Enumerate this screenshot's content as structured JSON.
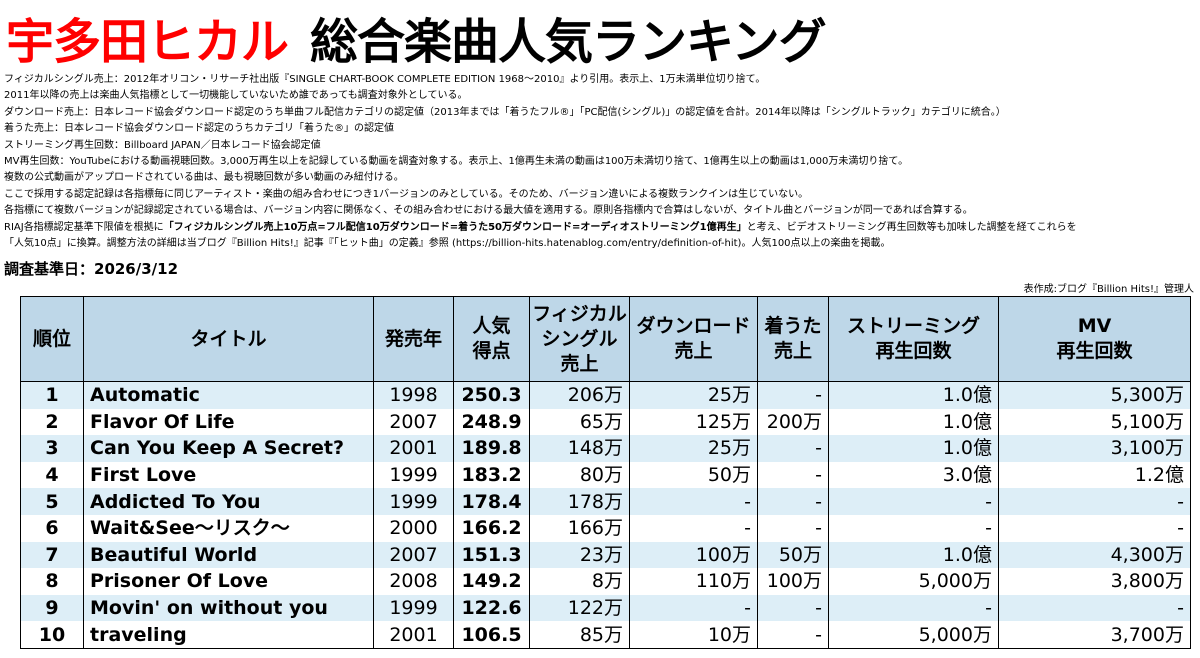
{
  "header": {
    "title_artist": "宇多田ヒカル",
    "title_main": "総合楽曲人気ランキング"
  },
  "notes": [
    "フィジカルシングル売上：2012年オリコン・リサーチ社出版『SINGLE CHART-BOOK COMPLETE EDITION 1968～2010』より引用。表示上、1万未満単位切り捨て。",
    "2011年以降の売上は楽曲人気指標として一切機能していないため誰であっても調査対象外としている。",
    "ダウンロード売上：日本レコード協会ダウンロード認定のうち単曲フル配信カテゴリの認定値（2013年までは「着うたフル®」「PC配信(シングル)」の認定値を合計。2014年以降は「シングルトラック」カテゴリに統合。）",
    "着うた売上：日本レコード協会ダウンロード認定のうちカテゴリ「着うた®」の認定値",
    "ストリーミング再生回数：Billboard JAPAN／日本レコード協会認定値",
    "MV再生回数：YouTubeにおける動画視聴回数。3,000万再生以上を記録している動画を調査対象する。表示上、1億再生未満の動画は100万未満切り捨て、1億再生以上の動画は1,000万未満切り捨て。",
    "複数の公式動画がアップロードされている曲は、最も視聴回数が多い動画のみ紐付ける。",
    "ここで採用する認定記録は各指標毎に同じアーティスト・楽曲の組み合わせにつき1バージョンのみとしている。そのため、バージョン違いによる複数ランクインは生じていない。",
    "各指標にて複数バージョンが記録認定されている場合は、バージョン内容に関係なく、その組み合わせにおける最大値を適用する。原則各指標内で合算はしないが、タイトル曲とバージョンが同一であれば合算する。"
  ],
  "note_riaj": {
    "prefix": "RIAJ各指標認定基準下限値を根拠に",
    "bold": "「フィジカルシングル売上10万点=フル配信10万ダウンロード=着うた50万ダウンロード=オーディオストリーミング1億再生」",
    "suffix": "と考え、ビデオストリーミング再生回数等も加味した調整を経てこれらを"
  },
  "note_last": "「人気10点」に換算。調整方法の詳細は当ブログ『Billion Hits!』記事『「ヒット曲」の定義』参照 (https://billion-hits.hatenablog.com/entry/definition-of-hit)。人気100点以上の楽曲を掲載。",
  "survey_date": "調査基準日：2026/3/12",
  "credit": "表作成:ブログ『Billion Hits!』管理人",
  "columns": {
    "rank": "順位",
    "title": "タイトル",
    "year": "発売年",
    "score": "人気\n得点",
    "physical": "フィジカル\nシングル\n売上",
    "download": "ダウンロード\n売上",
    "chakuuta": "着うた\n売上",
    "streaming": "ストリーミング\n再生回数",
    "mv": "MV\n再生回数"
  },
  "rows": [
    {
      "rank": "1",
      "title": "Automatic",
      "year": "1998",
      "score": "250.3",
      "physical": "206万",
      "download": "25万",
      "chakuuta": "-",
      "streaming": "1.0億",
      "mv": "5,300万"
    },
    {
      "rank": "2",
      "title": "Flavor Of Life",
      "year": "2007",
      "score": "248.9",
      "physical": "65万",
      "download": "125万",
      "chakuuta": "200万",
      "streaming": "1.0億",
      "mv": "5,100万"
    },
    {
      "rank": "3",
      "title": "Can You Keep A Secret?",
      "year": "2001",
      "score": "189.8",
      "physical": "148万",
      "download": "25万",
      "chakuuta": "-",
      "streaming": "1.0億",
      "mv": "3,100万"
    },
    {
      "rank": "4",
      "title": "First Love",
      "year": "1999",
      "score": "183.2",
      "physical": "80万",
      "download": "50万",
      "chakuuta": "-",
      "streaming": "3.0億",
      "mv": "1.2億"
    },
    {
      "rank": "5",
      "title": "Addicted To You",
      "year": "1999",
      "score": "178.4",
      "physical": "178万",
      "download": "-",
      "chakuuta": "-",
      "streaming": "-",
      "mv": "-"
    },
    {
      "rank": "6",
      "title": "Wait&See～リスク～",
      "year": "2000",
      "score": "166.2",
      "physical": "166万",
      "download": "-",
      "chakuuta": "-",
      "streaming": "-",
      "mv": "-"
    },
    {
      "rank": "7",
      "title": "Beautiful World",
      "year": "2007",
      "score": "151.3",
      "physical": "23万",
      "download": "100万",
      "chakuuta": "50万",
      "streaming": "1.0億",
      "mv": "4,300万"
    },
    {
      "rank": "8",
      "title": "Prisoner Of Love",
      "year": "2008",
      "score": "149.2",
      "physical": "8万",
      "download": "110万",
      "chakuuta": "100万",
      "streaming": "5,000万",
      "mv": "3,800万"
    },
    {
      "rank": "9",
      "title": "Movin' on without you",
      "year": "1999",
      "score": "122.6",
      "physical": "122万",
      "download": "-",
      "chakuuta": "-",
      "streaming": "-",
      "mv": "-"
    },
    {
      "rank": "10",
      "title": "traveling",
      "year": "2001",
      "score": "106.5",
      "physical": "85万",
      "download": "10万",
      "chakuuta": "-",
      "streaming": "5,000万",
      "mv": "3,700万"
    }
  ]
}
